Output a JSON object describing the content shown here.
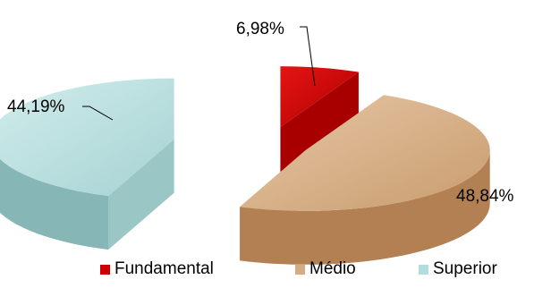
{
  "chart_data": {
    "type": "pie",
    "title": "",
    "style": "3d-exploded",
    "categories": [
      "Fundamental",
      "Médio",
      "Superior"
    ],
    "values": [
      6.98,
      48.84,
      44.19
    ],
    "data_labels": [
      "6,98%",
      "48,84%",
      "44,19%"
    ],
    "colors": [
      "#cc0000",
      "#d4ab82",
      "#b3dcdc"
    ],
    "legend_position": "bottom"
  }
}
